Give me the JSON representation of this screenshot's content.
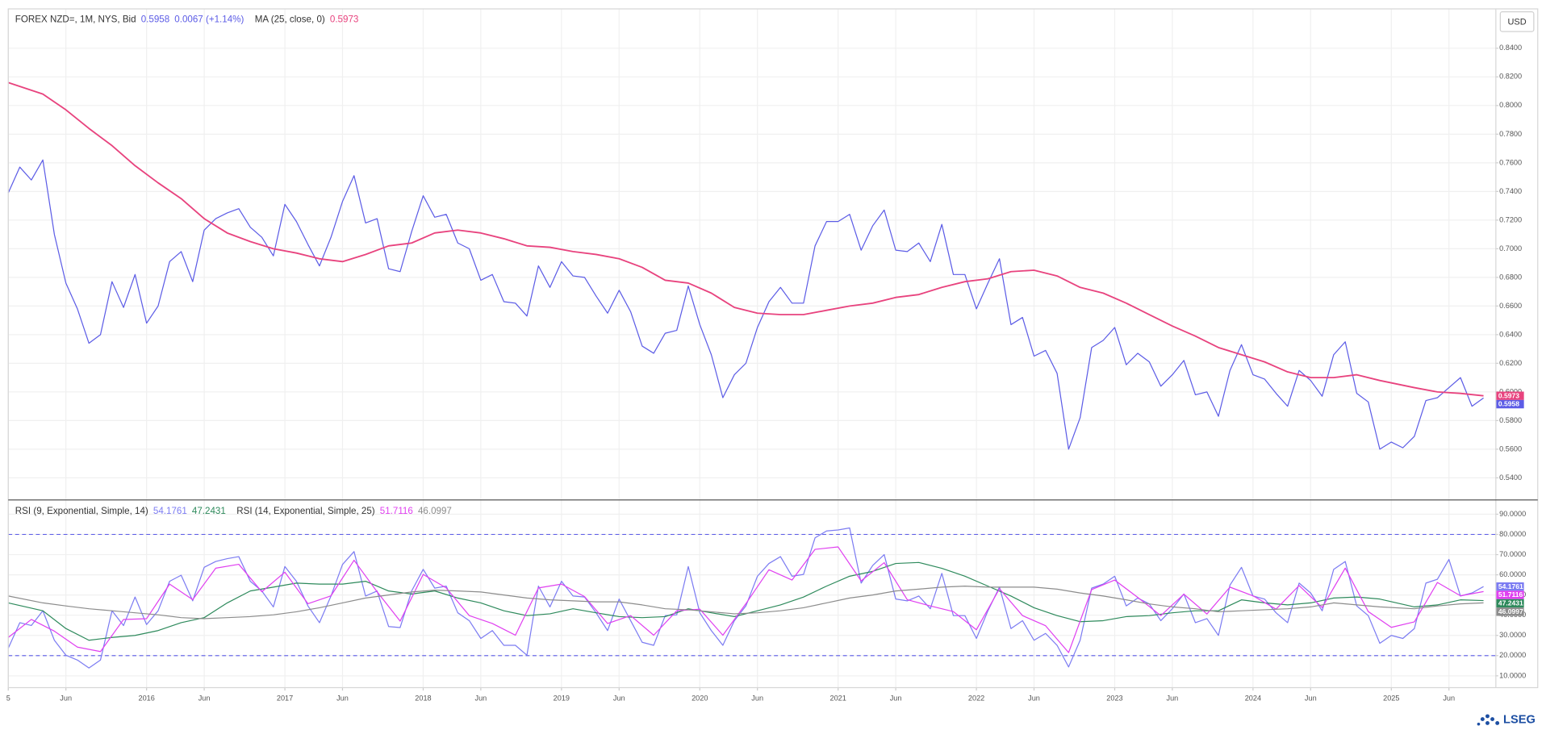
{
  "chart_data": [
    {
      "type": "line",
      "xlim": [
        0,
        128
      ],
      "ylim": [
        0.5249,
        0.8675
      ],
      "yticks": [
        {
          "value": 0.54,
          "label": "0.5400"
        },
        {
          "value": 0.56,
          "label": "0.5600"
        },
        {
          "value": 0.58,
          "label": "0.5800"
        },
        {
          "value": 0.6,
          "label": "0.6000"
        },
        {
          "value": 0.62,
          "label": "0.6200"
        },
        {
          "value": 0.64,
          "label": "0.6400"
        },
        {
          "value": 0.66,
          "label": "0.6600"
        },
        {
          "value": 0.68,
          "label": "0.6800"
        },
        {
          "value": 0.7,
          "label": "0.7000"
        },
        {
          "value": 0.72,
          "label": "0.7200"
        },
        {
          "value": 0.74,
          "label": "0.7400"
        },
        {
          "value": 0.76,
          "label": "0.7600"
        },
        {
          "value": 0.78,
          "label": "0.7800"
        },
        {
          "value": 0.8,
          "label": "0.8000"
        },
        {
          "value": 0.82,
          "label": "0.8200"
        },
        {
          "value": 0.84,
          "label": "0.8400"
        }
      ],
      "grid": true,
      "series": [
        {
          "name": "FOREX NZD=, 1M, NYS, Bid",
          "color": "#5c5ce6",
          "change_label": "0.0067 (+1.14%)",
          "values": [
            0.739,
            0.757,
            0.748,
            0.762,
            0.71,
            0.676,
            0.658,
            0.634,
            0.64,
            0.677,
            0.659,
            0.682,
            0.648,
            0.66,
            0.691,
            0.698,
            0.677,
            0.713,
            0.721,
            0.725,
            0.728,
            0.715,
            0.708,
            0.695,
            0.731,
            0.719,
            0.703,
            0.688,
            0.708,
            0.733,
            0.751,
            0.718,
            0.721,
            0.686,
            0.684,
            0.712,
            0.737,
            0.722,
            0.724,
            0.704,
            0.7,
            0.678,
            0.682,
            0.663,
            0.662,
            0.653,
            0.688,
            0.673,
            0.691,
            0.681,
            0.68,
            0.667,
            0.655,
            0.671,
            0.656,
            0.632,
            0.627,
            0.641,
            0.643,
            0.674,
            0.647,
            0.626,
            0.596,
            0.612,
            0.62,
            0.645,
            0.663,
            0.673,
            0.662,
            0.662,
            0.702,
            0.719,
            0.719,
            0.724,
            0.699,
            0.716,
            0.727,
            0.699,
            0.698,
            0.704,
            0.691,
            0.717,
            0.682,
            0.682,
            0.658,
            0.676,
            0.693,
            0.647,
            0.652,
            0.625,
            0.629,
            0.613,
            0.56,
            0.582,
            0.631,
            0.636,
            0.645,
            0.619,
            0.627,
            0.621,
            0.604,
            0.612,
            0.622,
            0.598,
            0.6,
            0.583,
            0.615,
            0.633,
            0.612,
            0.609,
            0.599,
            0.59,
            0.615,
            0.608,
            0.597,
            0.626,
            0.635,
            0.599,
            0.593,
            0.56,
            0.565,
            0.561,
            0.569,
            0.594,
            0.596,
            0.603,
            0.61,
            0.59,
            0.5958
          ]
        },
        {
          "name": "MA (25, close, 0)",
          "color": "#e8437e",
          "x": [
            0,
            3,
            5,
            7,
            9,
            11,
            13,
            15,
            17,
            19,
            21,
            23,
            25,
            27,
            29,
            31,
            33,
            35,
            37,
            39,
            41,
            43,
            45,
            47,
            49,
            51,
            53,
            55,
            57,
            59,
            61,
            63,
            65,
            67,
            69,
            71,
            73,
            75,
            77,
            79,
            81,
            83,
            85,
            87,
            89,
            91,
            93,
            95,
            97,
            99,
            101,
            103,
            105,
            107,
            109,
            111,
            113,
            115,
            117,
            119,
            122,
            124,
            126,
            128
          ],
          "values": [
            0.816,
            0.808,
            0.797,
            0.784,
            0.772,
            0.758,
            0.746,
            0.735,
            0.721,
            0.711,
            0.705,
            0.7,
            0.697,
            0.693,
            0.691,
            0.696,
            0.702,
            0.704,
            0.711,
            0.713,
            0.711,
            0.707,
            0.702,
            0.701,
            0.698,
            0.696,
            0.693,
            0.687,
            0.678,
            0.676,
            0.669,
            0.659,
            0.655,
            0.654,
            0.654,
            0.657,
            0.66,
            0.662,
            0.666,
            0.668,
            0.673,
            0.677,
            0.679,
            0.684,
            0.685,
            0.681,
            0.673,
            0.669,
            0.662,
            0.654,
            0.646,
            0.639,
            0.631,
            0.626,
            0.621,
            0.614,
            0.61,
            0.61,
            0.612,
            0.608,
            0.603,
            0.6,
            0.599,
            0.5973
          ]
        }
      ]
    },
    {
      "type": "line",
      "xlim": [
        0,
        128
      ],
      "ylim": [
        4.15,
        96.8
      ],
      "xticks": [
        {
          "value": 0,
          "label": "5"
        },
        {
          "value": 5,
          "label": "Jun"
        },
        {
          "value": 12,
          "label": "2016"
        },
        {
          "value": 17,
          "label": "Jun"
        },
        {
          "value": 24,
          "label": "2017"
        },
        {
          "value": 29,
          "label": "Jun"
        },
        {
          "value": 36,
          "label": "2018"
        },
        {
          "value": 41,
          "label": "Jun"
        },
        {
          "value": 48,
          "label": "2019"
        },
        {
          "value": 53,
          "label": "Jun"
        },
        {
          "value": 60,
          "label": "2020"
        },
        {
          "value": 65,
          "label": "Jun"
        },
        {
          "value": 72,
          "label": "2021"
        },
        {
          "value": 77,
          "label": "Jun"
        },
        {
          "value": 84,
          "label": "2022"
        },
        {
          "value": 89,
          "label": "Jun"
        },
        {
          "value": 96,
          "label": "2023"
        },
        {
          "value": 101,
          "label": "Jun"
        },
        {
          "value": 108,
          "label": "2024"
        },
        {
          "value": 113,
          "label": "Jun"
        },
        {
          "value": 120,
          "label": "2025"
        },
        {
          "value": 125,
          "label": "Jun"
        }
      ],
      "yticks": [
        {
          "value": 10,
          "label": "10.0000"
        },
        {
          "value": 20,
          "label": "20.0000"
        },
        {
          "value": 30,
          "label": "30.0000"
        },
        {
          "value": 40,
          "label": "40.0000"
        },
        {
          "value": 50,
          "label": "50.0000"
        },
        {
          "value": 60,
          "label": "60.0000"
        },
        {
          "value": 70,
          "label": "70.0000"
        },
        {
          "value": 80,
          "label": "80.0000"
        },
        {
          "value": 90,
          "label": "90.0000"
        }
      ],
      "hlines": [
        80,
        20
      ],
      "grid": true,
      "series": [
        {
          "name": "RSI (9, Exponential, Simple, 14)",
          "color": "#7c7cf2",
          "values": [
            23.7,
            36.3,
            34.9,
            42.2,
            27.6,
            20.2,
            17.8,
            13.9,
            17.8,
            42.2,
            34.9,
            49,
            35.4,
            42.2,
            56.8,
            59.8,
            47.1,
            63.7,
            66.6,
            68.0,
            69.0,
            56.8,
            52,
            44.1,
            64.1,
            56.8,
            44.6,
            36.3,
            49.5,
            65.1,
            71.5,
            49.5,
            52,
            34.4,
            33.9,
            52,
            62.7,
            53.4,
            54.4,
            41.2,
            37.3,
            28.5,
            32.4,
            25.1,
            25.1,
            20.2,
            54.4,
            44.1,
            56.8,
            49.5,
            49,
            41.2,
            32.4,
            48,
            37.3,
            26.6,
            25.1,
            39.8,
            40.2,
            64.1,
            41.2,
            32.4,
            25.1,
            37.3,
            44.6,
            59.3,
            65.6,
            69.0,
            59.3,
            60.2,
            78.3,
            81.7,
            82.2,
            83.2,
            55.9,
            64.6,
            70,
            48,
            47.1,
            49.5,
            43.2,
            60.7,
            39.8,
            39.8,
            28.5,
            42.2,
            53.9,
            33.4,
            37.3,
            27.6,
            31,
            25.1,
            14.4,
            27.6,
            53.4,
            55.4,
            59.3,
            44.6,
            48.5,
            45.6,
            37.3,
            43.2,
            50.5,
            36.3,
            38.3,
            30,
            54.9,
            63.7,
            49.5,
            48,
            41.2,
            36.3,
            55.9,
            51,
            42.2,
            62.7,
            66.6,
            44.6,
            39.8,
            26.1,
            30,
            28.5,
            33.4,
            55.9,
            57.8,
            67.6,
            49.5,
            51.0,
            54.1761
          ]
        },
        {
          "color": "#2e8a5c",
          "x": [
            0,
            3,
            5,
            7,
            9,
            11,
            13,
            15,
            17,
            19,
            21,
            23,
            25,
            27,
            29,
            31,
            33,
            35,
            37,
            39,
            41,
            43,
            45,
            47,
            49,
            51,
            53,
            55,
            57,
            59,
            61,
            63,
            65,
            67,
            69,
            71,
            73,
            75,
            77,
            79,
            81,
            83,
            85,
            87,
            89,
            91,
            93,
            95,
            97,
            99,
            101,
            103,
            105,
            107,
            109,
            111,
            113,
            115,
            117,
            119,
            122,
            124,
            126,
            128
          ],
          "values": [
            46.1,
            42.2,
            33.4,
            27.6,
            29,
            30,
            32.4,
            36.3,
            38.8,
            46.1,
            52,
            53.9,
            55.9,
            55.4,
            55.4,
            56.8,
            52,
            50.5,
            52,
            48.5,
            46.1,
            42.2,
            39.8,
            40.7,
            43.2,
            41.2,
            39.3,
            38.8,
            39.3,
            43.2,
            41.2,
            39.3,
            42.2,
            45.1,
            49,
            54.4,
            59.3,
            61.7,
            65.6,
            66.1,
            63.2,
            59.3,
            54.4,
            49.5,
            43.7,
            39.8,
            36.8,
            37.3,
            39.3,
            39.8,
            41.2,
            42.2,
            42.2,
            47.6,
            46.1,
            45.1,
            46.1,
            48.5,
            49,
            48,
            44.1,
            45.1,
            47.6,
            47.2431
          ]
        },
        {
          "name": "RSI (14, Exponential, Simple, 25)",
          "color": "#e040f0",
          "x": [
            0,
            2,
            4,
            6,
            8,
            10,
            12,
            14,
            16,
            18,
            20,
            22,
            24,
            26,
            28,
            30,
            32,
            34,
            36,
            38,
            40,
            42,
            44,
            46,
            48,
            50,
            52,
            54,
            56,
            58,
            60,
            62,
            64,
            66,
            68,
            70,
            72,
            74,
            76,
            78,
            80,
            82,
            84,
            86,
            88,
            90,
            92,
            94,
            96,
            98,
            100,
            102,
            104,
            106,
            108,
            110,
            112,
            114,
            116,
            118,
            120,
            122,
            124,
            126,
            128
          ],
          "values": [
            29.0,
            37.9,
            32.1,
            24.2,
            22.0,
            37.9,
            38.3,
            55.4,
            47.7,
            63.3,
            65.2,
            51.6,
            61.3,
            45.7,
            49.6,
            67.2,
            51.6,
            37.1,
            60.2,
            53.5,
            39.8,
            35.9,
            30.1,
            53.5,
            55.4,
            49.2,
            35.9,
            39.8,
            30.1,
            42.2,
            43.0,
            30.1,
            45.7,
            62.5,
            57.4,
            72.6,
            73.8,
            57.0,
            66.0,
            47.7,
            44.6,
            41.8,
            32.8,
            53.1,
            39.8,
            34.8,
            21.5,
            52.7,
            57.4,
            48.8,
            39.8,
            50.4,
            40.6,
            53.9,
            49.6,
            43.0,
            54.7,
            43.8,
            63.3,
            41.8,
            34.0,
            36.7,
            56.2,
            49.6,
            51.7116
          ]
        },
        {
          "color": "#8c8c8c",
          "x": [
            0,
            3,
            5,
            7,
            9,
            11,
            13,
            15,
            17,
            19,
            21,
            23,
            25,
            27,
            29,
            31,
            33,
            35,
            37,
            39,
            41,
            43,
            45,
            47,
            49,
            51,
            53,
            55,
            57,
            59,
            61,
            63,
            65,
            67,
            69,
            71,
            73,
            75,
            77,
            79,
            81,
            83,
            85,
            87,
            89,
            91,
            93,
            95,
            97,
            99,
            101,
            103,
            105,
            107,
            109,
            111,
            113,
            115,
            117,
            119,
            122,
            124,
            126,
            128
          ],
          "values": [
            49.5,
            46.1,
            44.6,
            43.2,
            42.2,
            41.2,
            40.2,
            38.8,
            38.3,
            38.8,
            39.3,
            40.2,
            41.7,
            43.7,
            46.1,
            48.5,
            50,
            51.5,
            52.4,
            52,
            51.5,
            50,
            48.5,
            47.6,
            47.1,
            46.6,
            46.6,
            45.1,
            43.2,
            42.7,
            41.7,
            40.7,
            41.2,
            42.2,
            43.7,
            46.1,
            48.5,
            50,
            52,
            52.9,
            53.9,
            54.4,
            53.9,
            53.9,
            53.9,
            52.9,
            51,
            49.5,
            47.6,
            45.6,
            44.1,
            43.2,
            41.7,
            42.2,
            42.7,
            43.2,
            44.1,
            46.1,
            45.1,
            44.1,
            43.2,
            44.6,
            45.6,
            46.0997
          ]
        }
      ]
    }
  ],
  "currency_button": "USD",
  "logo": "LSEG"
}
